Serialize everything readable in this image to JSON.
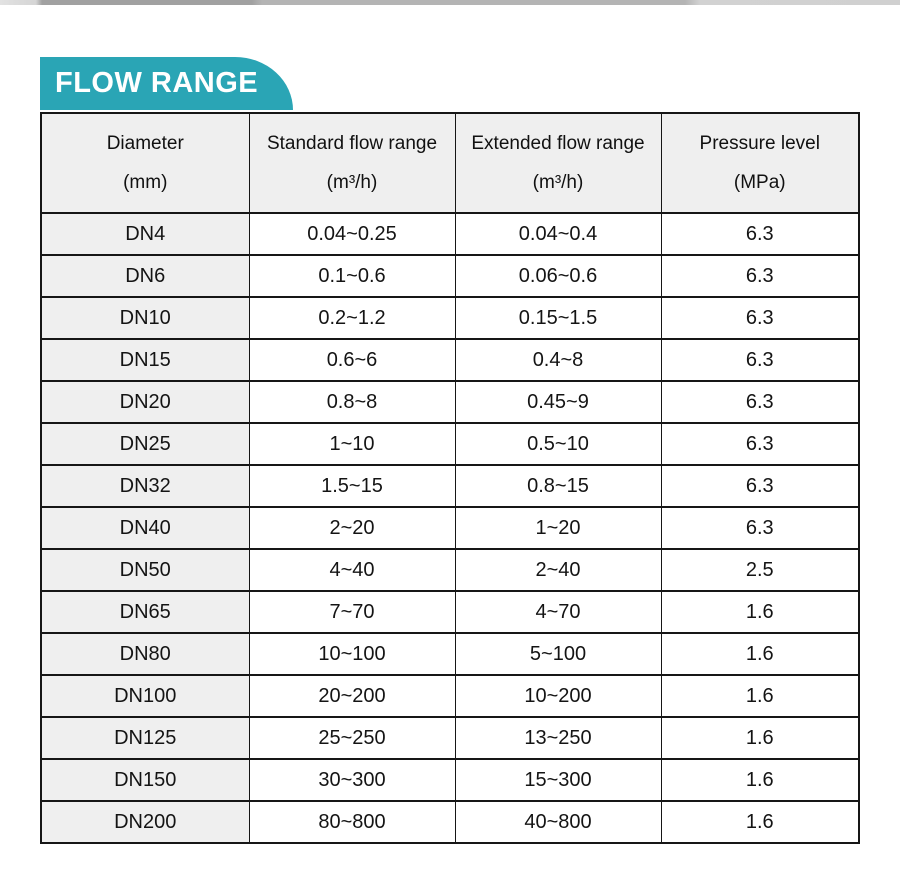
{
  "banner": {
    "label": "FLOW RANGE"
  },
  "table": {
    "headers": [
      {
        "title": "Diameter",
        "unit": "(mm)",
        "name": "diameter"
      },
      {
        "title": "Standard flow range",
        "unit": "(m³/h)",
        "name": "standard-flow-range"
      },
      {
        "title": "Extended flow range",
        "unit": "(m³/h)",
        "name": "extended-flow-range"
      },
      {
        "title": "Pressure level",
        "unit": "(MPa)",
        "name": "pressure-level"
      }
    ],
    "rows": [
      [
        "DN4",
        "0.04~0.25",
        "0.04~0.4",
        "6.3"
      ],
      [
        "DN6",
        "0.1~0.6",
        "0.06~0.6",
        "6.3"
      ],
      [
        "DN10",
        "0.2~1.2",
        "0.15~1.5",
        "6.3"
      ],
      [
        "DN15",
        "0.6~6",
        "0.4~8",
        "6.3"
      ],
      [
        "DN20",
        "0.8~8",
        "0.45~9",
        "6.3"
      ],
      [
        "DN25",
        "1~10",
        "0.5~10",
        "6.3"
      ],
      [
        "DN32",
        "1.5~15",
        "0.8~15",
        "6.3"
      ],
      [
        "DN40",
        "2~20",
        "1~20",
        "6.3"
      ],
      [
        "DN50",
        "4~40",
        "2~40",
        "2.5"
      ],
      [
        "DN65",
        "7~70",
        "4~70",
        "1.6"
      ],
      [
        "DN80",
        "10~100",
        "5~100",
        "1.6"
      ],
      [
        "DN100",
        "20~200",
        "10~200",
        "1.6"
      ],
      [
        "DN125",
        "25~250",
        "13~250",
        "1.6"
      ],
      [
        "DN150",
        "30~300",
        "15~300",
        "1.6"
      ],
      [
        "DN200",
        "80~800",
        "40~800",
        "1.6"
      ]
    ]
  },
  "colors": {
    "accent_teal": "#2aa5b5",
    "header_cell_bg": "#efefef",
    "table_border": "#161616"
  }
}
